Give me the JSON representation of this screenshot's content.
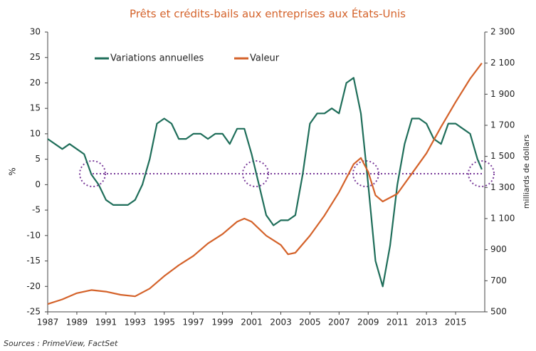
{
  "chart_data": {
    "type": "line",
    "title": "Prêts et crédits-bails aux entreprises aux États-Unis",
    "ylabel": "%",
    "y2label": "milliards de dollars",
    "source": "Sources : PrimeView, FactSet",
    "xlim": [
      1987,
      2017
    ],
    "xticks": [
      1987,
      1989,
      1991,
      1993,
      1995,
      1997,
      1999,
      2001,
      2003,
      2005,
      2007,
      2009,
      2011,
      2013,
      2015
    ],
    "ylim": [
      -25,
      30
    ],
    "yticks": [
      -25,
      -20,
      -15,
      -10,
      -5,
      0,
      5,
      10,
      15,
      20,
      25,
      30
    ],
    "y2lim": [
      500,
      2300
    ],
    "y2ticks": [
      500,
      700,
      900,
      {
        "value": 1100,
        "label": "1 100"
      },
      {
        "value": 1300,
        "label": "1 300"
      },
      {
        "value": 1500,
        "label": "1 500"
      },
      {
        "value": 1700,
        "label": "1 700"
      },
      {
        "value": 1900,
        "label": "1 900"
      },
      {
        "value": 2100,
        "label": "2 100"
      },
      {
        "value": 2300,
        "label": "2 300"
      }
    ],
    "series": [
      {
        "name": "Variations annuelles",
        "color": "#1f6e5a",
        "axis": "y",
        "x": [
          1987,
          1987.5,
          1988,
          1988.5,
          1989,
          1989.5,
          1990,
          1990.5,
          1991,
          1991.5,
          1992,
          1992.5,
          1993,
          1993.5,
          1994,
          1994.5,
          1995,
          1995.5,
          1996,
          1996.5,
          1997,
          1997.5,
          1998,
          1998.5,
          1999,
          1999.5,
          2000,
          2000.5,
          2001,
          2001.5,
          2002,
          2002.5,
          2003,
          2003.5,
          2004,
          2004.5,
          2005,
          2005.5,
          2006,
          2006.5,
          2007,
          2007.5,
          2008,
          2008.5,
          2009,
          2009.5,
          2010,
          2010.5,
          2011,
          2011.5,
          2012,
          2012.5,
          2013,
          2013.5,
          2014,
          2014.5,
          2015,
          2015.5,
          2016,
          2016.5,
          2016.8
        ],
        "values": [
          9,
          8,
          7,
          8,
          7,
          6,
          2,
          0,
          -3,
          -4,
          -4,
          -4,
          -3,
          0,
          5,
          12,
          13,
          12,
          9,
          9,
          10,
          10,
          9,
          10,
          10,
          8,
          11,
          11,
          6,
          0,
          -6,
          -8,
          -7,
          -7,
          -6,
          2,
          12,
          14,
          14,
          15,
          14,
          20,
          21,
          14,
          0,
          -15,
          -20,
          -12,
          0,
          8,
          13,
          13,
          12,
          9,
          8,
          12,
          12,
          11,
          10,
          5,
          3
        ]
      },
      {
        "name": "Valeur",
        "color": "#d4622a",
        "axis": "y2",
        "x": [
          1987,
          1988,
          1989,
          1990,
          1991,
          1992,
          1993,
          1994,
          1995,
          1996,
          1997,
          1998,
          1999,
          2000,
          2000.5,
          2001,
          2002,
          2003,
          2003.5,
          2004,
          2005,
          2006,
          2007,
          2008,
          2008.5,
          2009,
          2009.5,
          2010,
          2011,
          2012,
          2013,
          2014,
          2015,
          2016,
          2016.8
        ],
        "values": [
          550,
          580,
          620,
          640,
          630,
          610,
          600,
          650,
          730,
          800,
          860,
          940,
          1000,
          1080,
          1100,
          1080,
          990,
          930,
          870,
          880,
          990,
          1120,
          1270,
          1450,
          1490,
          1400,
          1250,
          1210,
          1260,
          1390,
          1520,
          1690,
          1850,
          2000,
          2100
        ]
      }
    ]
  }
}
